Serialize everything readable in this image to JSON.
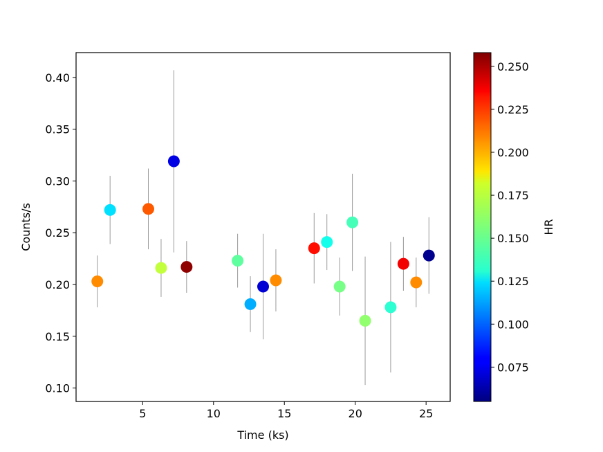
{
  "chart_data": {
    "type": "scatter",
    "xlabel": "Time (ks)",
    "ylabel": "Counts/s",
    "xlim": [
      0.3,
      26.7
    ],
    "ylim": [
      0.087,
      0.424
    ],
    "xticks": [
      5,
      10,
      15,
      20,
      25
    ],
    "xtick_labels": [
      "5",
      "10",
      "15",
      "20",
      "25"
    ],
    "yticks": [
      0.1,
      0.15,
      0.2,
      0.25,
      0.3,
      0.35,
      0.4
    ],
    "ytick_labels": [
      "0.10",
      "0.15",
      "0.20",
      "0.25",
      "0.30",
      "0.35",
      "0.40"
    ],
    "grid": false,
    "colormap": "jet",
    "colorbar": {
      "label": "HR",
      "range": [
        0.055,
        0.258
      ],
      "ticks": [
        0.075,
        0.1,
        0.125,
        0.15,
        0.175,
        0.2,
        0.225,
        0.25
      ],
      "tick_labels": [
        "0.075",
        "0.100",
        "0.125",
        "0.150",
        "0.175",
        "0.200",
        "0.225",
        "0.250"
      ]
    },
    "errorbar_color": "#999999",
    "points": [
      {
        "x": 1.8,
        "y": 0.203,
        "yerr_low": 0.025,
        "yerr_high": 0.025,
        "hr": 0.205
      },
      {
        "x": 2.7,
        "y": 0.272,
        "yerr_low": 0.033,
        "yerr_high": 0.033,
        "hr": 0.125
      },
      {
        "x": 5.4,
        "y": 0.273,
        "yerr_low": 0.039,
        "yerr_high": 0.039,
        "hr": 0.215
      },
      {
        "x": 6.3,
        "y": 0.216,
        "yerr_low": 0.028,
        "yerr_high": 0.028,
        "hr": 0.17
      },
      {
        "x": 7.2,
        "y": 0.319,
        "yerr_low": 0.088,
        "yerr_high": 0.088,
        "hr": 0.075
      },
      {
        "x": 8.1,
        "y": 0.217,
        "yerr_low": 0.025,
        "yerr_high": 0.025,
        "hr": 0.255
      },
      {
        "x": 11.7,
        "y": 0.223,
        "yerr_low": 0.026,
        "yerr_high": 0.026,
        "hr": 0.15
      },
      {
        "x": 12.6,
        "y": 0.181,
        "yerr_low": 0.027,
        "yerr_high": 0.027,
        "hr": 0.115
      },
      {
        "x": 13.5,
        "y": 0.198,
        "yerr_low": 0.051,
        "yerr_high": 0.051,
        "hr": 0.072
      },
      {
        "x": 14.4,
        "y": 0.204,
        "yerr_low": 0.03,
        "yerr_high": 0.03,
        "hr": 0.205
      },
      {
        "x": 17.1,
        "y": 0.235,
        "yerr_low": 0.034,
        "yerr_high": 0.034,
        "hr": 0.23
      },
      {
        "x": 18.0,
        "y": 0.241,
        "yerr_low": 0.027,
        "yerr_high": 0.027,
        "hr": 0.135
      },
      {
        "x": 18.9,
        "y": 0.198,
        "yerr_low": 0.028,
        "yerr_high": 0.028,
        "hr": 0.155
      },
      {
        "x": 19.8,
        "y": 0.26,
        "yerr_low": 0.047,
        "yerr_high": 0.047,
        "hr": 0.145
      },
      {
        "x": 20.7,
        "y": 0.165,
        "yerr_low": 0.062,
        "yerr_high": 0.062,
        "hr": 0.16
      },
      {
        "x": 22.5,
        "y": 0.178,
        "yerr_low": 0.063,
        "yerr_high": 0.063,
        "hr": 0.14
      },
      {
        "x": 23.4,
        "y": 0.22,
        "yerr_low": 0.026,
        "yerr_high": 0.026,
        "hr": 0.235
      },
      {
        "x": 24.3,
        "y": 0.202,
        "yerr_low": 0.024,
        "yerr_high": 0.024,
        "hr": 0.205
      },
      {
        "x": 25.2,
        "y": 0.228,
        "yerr_low": 0.037,
        "yerr_high": 0.037,
        "hr": 0.058
      }
    ]
  }
}
